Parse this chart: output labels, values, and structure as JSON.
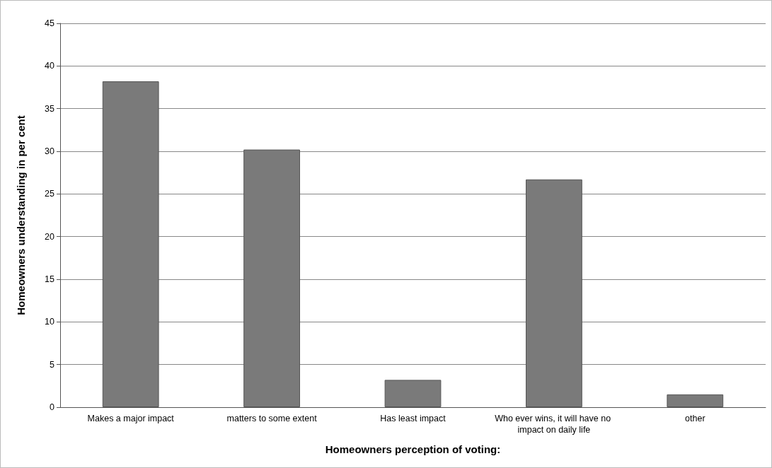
{
  "chart_data": {
    "type": "bar",
    "xlabel": "Homeowners perception of voting:",
    "ylabel": "Homeowners understanding in per cent",
    "categories": [
      "Makes a major impact",
      "matters to some extent",
      "Has least impact",
      "Who ever wins, it will have no impact on daily life",
      "other"
    ],
    "values": [
      38.2,
      30.2,
      3.2,
      26.7,
      1.5
    ],
    "color": "#7a7a7a",
    "ylim": [
      0,
      45
    ],
    "yticks": [
      0,
      5,
      10,
      15,
      20,
      25,
      30,
      35,
      40,
      45
    ],
    "grid": "y"
  }
}
